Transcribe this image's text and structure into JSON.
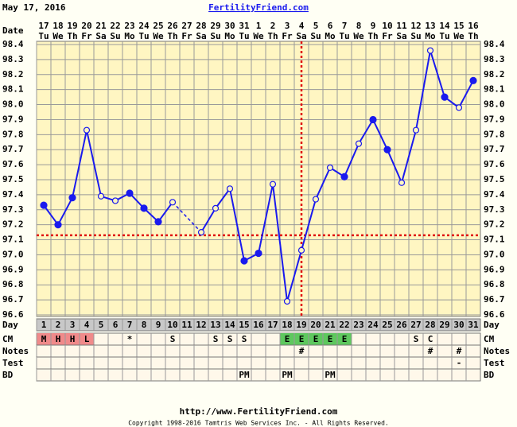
{
  "header": {
    "date": "May 17, 2016",
    "site": "FertilityFriend.com"
  },
  "chart_data": {
    "type": "line",
    "date_label": "Date",
    "categories": [
      "17",
      "18",
      "19",
      "20",
      "21",
      "22",
      "23",
      "24",
      "25",
      "26",
      "27",
      "28",
      "29",
      "30",
      "31",
      "1",
      "2",
      "3",
      "4",
      "5",
      "6",
      "7",
      "8",
      "9",
      "10",
      "11",
      "12",
      "13",
      "14",
      "15",
      "16"
    ],
    "weekdays": [
      "Tu",
      "We",
      "Th",
      "Fr",
      "Sa",
      "Su",
      "Mo",
      "Tu",
      "We",
      "Th",
      "Fr",
      "Sa",
      "Su",
      "Mo",
      "Tu",
      "We",
      "Th",
      "Fr",
      "Sa",
      "Su",
      "Mo",
      "Tu",
      "We",
      "Th",
      "Fr",
      "Sa",
      "Su",
      "Mo",
      "Tu",
      "We",
      "Th"
    ],
    "series": [
      {
        "name": "Temperature",
        "color": "#1a1aee",
        "values": [
          97.33,
          97.2,
          97.38,
          97.83,
          97.39,
          97.36,
          97.41,
          97.31,
          97.22,
          97.35,
          null,
          97.15,
          97.31,
          97.44,
          96.96,
          97.01,
          97.47,
          96.69,
          97.03,
          97.37,
          97.58,
          97.52,
          97.74,
          97.9,
          97.7,
          97.48,
          97.83,
          98.36,
          98.05,
          97.98,
          98.16
        ],
        "markers": [
          "filled",
          "filled",
          "filled",
          "open",
          "open",
          "open",
          "filled",
          "filled",
          "filled",
          "open",
          null,
          "open",
          "open",
          "open",
          "filled",
          "filled",
          "open",
          "open",
          "open",
          "open",
          "open",
          "filled",
          "open",
          "filled",
          "filled",
          "open",
          "open",
          "open",
          "filled",
          "open",
          "filled"
        ]
      }
    ],
    "ylim": [
      96.6,
      98.4
    ],
    "yticks": [
      {
        "value": 96.6,
        "label": "96.6"
      },
      {
        "value": 96.7,
        "label": "96.7"
      },
      {
        "value": 96.8,
        "label": "96.8"
      },
      {
        "value": 96.9,
        "label": "96.9"
      },
      {
        "value": 97.0,
        "label": "97.0"
      },
      {
        "value": 97.1,
        "label": "97.1"
      },
      {
        "value": 97.2,
        "label": "97.2"
      },
      {
        "value": 97.3,
        "label": "97.3"
      },
      {
        "value": 97.4,
        "label": "97.4"
      },
      {
        "value": 97.5,
        "label": "97.5"
      },
      {
        "value": 97.6,
        "label": "97.6"
      },
      {
        "value": 97.7,
        "label": "97.7"
      },
      {
        "value": 97.8,
        "label": "97.8"
      },
      {
        "value": 97.9,
        "label": "97.9"
      },
      {
        "value": 98.0,
        "label": "98.0"
      },
      {
        "value": 98.1,
        "label": "98.1"
      },
      {
        "value": 98.2,
        "label": "98.2"
      },
      {
        "value": 98.3,
        "label": "98.3"
      },
      {
        "value": 98.4,
        "label": "98.4"
      }
    ],
    "grid": true,
    "coverline": 97.13,
    "ovulation_day": 19,
    "marker_color": "#e01010"
  },
  "table": {
    "day_label": "Day",
    "days": [
      1,
      2,
      3,
      4,
      5,
      6,
      7,
      8,
      9,
      10,
      11,
      12,
      13,
      14,
      15,
      16,
      17,
      18,
      19,
      20,
      21,
      22,
      23,
      24,
      25,
      26,
      27,
      28,
      29,
      30,
      31
    ],
    "rows": [
      {
        "label": "CM",
        "cells": [
          "M",
          "H",
          "H",
          "L",
          null,
          null,
          "*",
          null,
          null,
          "S",
          null,
          null,
          "S",
          "S",
          "S",
          null,
          null,
          "E",
          "E",
          "E",
          "E",
          "E",
          null,
          null,
          null,
          null,
          "S",
          "C",
          null,
          null,
          null
        ],
        "highlights": [
          {
            "from": 1,
            "to": 4,
            "color": "#f08a8a"
          },
          {
            "from": 18,
            "to": 22,
            "color": "#5ec85e"
          }
        ]
      },
      {
        "label": "Notes",
        "cells": [
          null,
          null,
          null,
          null,
          null,
          null,
          null,
          null,
          null,
          null,
          null,
          null,
          null,
          null,
          null,
          null,
          null,
          null,
          "#",
          null,
          null,
          null,
          null,
          null,
          null,
          null,
          null,
          "#",
          null,
          "#",
          null
        ]
      },
      {
        "label": "Test",
        "cells": [
          null,
          null,
          null,
          null,
          null,
          null,
          null,
          null,
          null,
          null,
          null,
          null,
          null,
          null,
          null,
          null,
          null,
          null,
          null,
          null,
          null,
          null,
          null,
          null,
          null,
          null,
          null,
          null,
          null,
          "-",
          null
        ]
      },
      {
        "label": "BD",
        "cells": [
          null,
          null,
          null,
          null,
          null,
          null,
          null,
          null,
          null,
          null,
          null,
          null,
          null,
          null,
          "PM",
          null,
          null,
          "PM",
          null,
          null,
          "PM",
          null,
          null,
          null,
          null,
          null,
          null,
          null,
          null,
          null,
          null
        ]
      }
    ]
  },
  "footer": {
    "url": "http://www.FertilityFriend.com",
    "copyright": "Copyright 1998-2016 Tamtris Web Services Inc. - All Rights Reserved."
  }
}
